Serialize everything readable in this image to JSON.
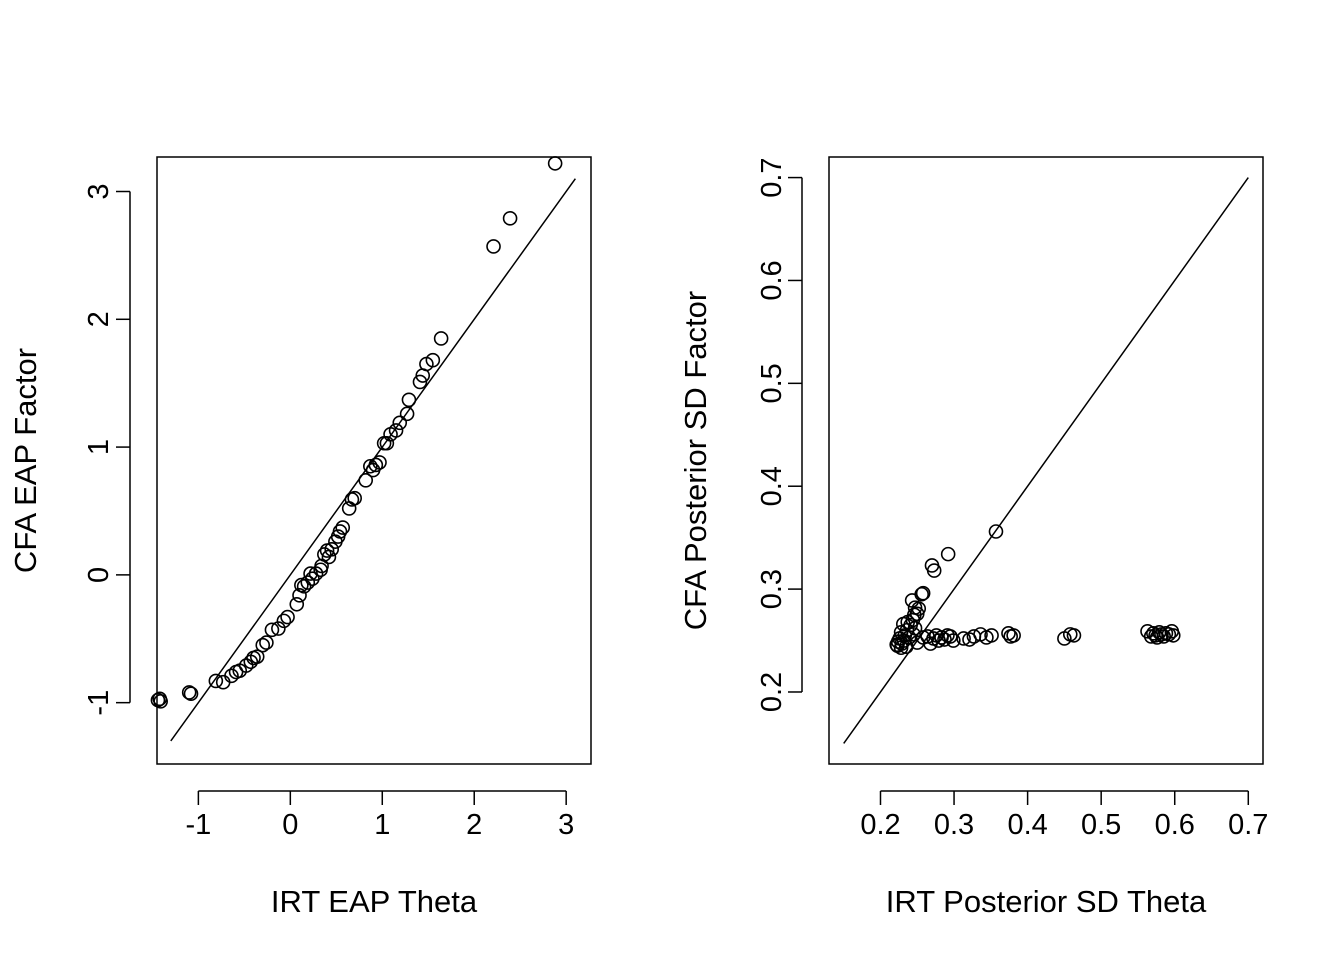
{
  "chart_data": [
    {
      "type": "scatter",
      "xlabel": "IRT EAP Theta",
      "ylabel": "CFA EAP Factor",
      "xlim": [
        -1.45,
        3.27
      ],
      "ylim": [
        -1.48,
        3.27
      ],
      "xticks": [
        "-1",
        "0",
        "1",
        "2",
        "3"
      ],
      "yticks": [
        "-1",
        "0",
        "1",
        "2",
        "3"
      ],
      "grid": false,
      "reference_line": {
        "slope": 1,
        "intercept": 0,
        "x_from": -1.3,
        "x_to": 3.1
      },
      "points": [
        [
          2.88,
          3.22
        ],
        [
          2.39,
          2.79
        ],
        [
          2.21,
          2.57
        ],
        [
          1.64,
          1.85
        ],
        [
          1.55,
          1.68
        ],
        [
          1.48,
          1.65
        ],
        [
          1.44,
          1.56
        ],
        [
          1.41,
          1.51
        ],
        [
          1.29,
          1.37
        ],
        [
          1.27,
          1.26
        ],
        [
          1.19,
          1.19
        ],
        [
          1.15,
          1.13
        ],
        [
          1.09,
          1.1
        ],
        [
          1.05,
          1.03
        ],
        [
          1.02,
          1.03
        ],
        [
          0.97,
          0.88
        ],
        [
          0.93,
          0.86
        ],
        [
          0.9,
          0.82
        ],
        [
          0.87,
          0.85
        ],
        [
          0.82,
          0.74
        ],
        [
          0.7,
          0.6
        ],
        [
          0.67,
          0.59
        ],
        [
          0.64,
          0.52
        ],
        [
          0.57,
          0.37
        ],
        [
          0.54,
          0.34
        ],
        [
          0.52,
          0.3
        ],
        [
          0.49,
          0.26
        ],
        [
          0.45,
          0.2
        ],
        [
          0.42,
          0.14
        ],
        [
          0.4,
          0.19
        ],
        [
          0.37,
          0.16
        ],
        [
          0.34,
          0.07
        ],
        [
          0.33,
          0.04
        ],
        [
          0.28,
          0.01
        ],
        [
          0.24,
          -0.03
        ],
        [
          0.22,
          0.01
        ],
        [
          0.19,
          -0.06
        ],
        [
          0.15,
          -0.09
        ],
        [
          0.12,
          -0.08
        ],
        [
          0.1,
          -0.16
        ],
        [
          0.07,
          -0.23
        ],
        [
          -0.03,
          -0.33
        ],
        [
          -0.07,
          -0.36
        ],
        [
          -0.13,
          -0.42
        ],
        [
          -0.2,
          -0.43
        ],
        [
          -0.26,
          -0.53
        ],
        [
          -0.3,
          -0.55
        ],
        [
          -0.36,
          -0.64
        ],
        [
          -0.4,
          -0.65
        ],
        [
          -0.43,
          -0.68
        ],
        [
          -0.48,
          -0.71
        ],
        [
          -0.55,
          -0.75
        ],
        [
          -0.59,
          -0.76
        ],
        [
          -0.64,
          -0.79
        ],
        [
          -0.73,
          -0.84
        ],
        [
          -0.81,
          -0.83
        ],
        [
          -1.08,
          -0.93
        ],
        [
          -1.1,
          -0.92
        ],
        [
          -1.42,
          -0.97
        ],
        [
          -1.44,
          -0.98
        ],
        [
          -1.41,
          -0.99
        ]
      ]
    },
    {
      "type": "scatter",
      "xlabel": "IRT Posterior SD Theta",
      "ylabel": "CFA Posterior SD Factor",
      "xlim": [
        0.13,
        0.72
      ],
      "ylim": [
        0.13,
        0.72
      ],
      "xticks": [
        "0.2",
        "0.3",
        "0.4",
        "0.5",
        "0.6",
        "0.7"
      ],
      "yticks": [
        "0.2",
        "0.3",
        "0.4",
        "0.5",
        "0.6",
        "0.7"
      ],
      "grid": false,
      "reference_line": {
        "slope": 1,
        "intercept": 0,
        "x_from": 0.15,
        "x_to": 0.7
      },
      "points": [
        [
          0.357,
          0.356
        ],
        [
          0.292,
          0.334
        ],
        [
          0.27,
          0.323
        ],
        [
          0.273,
          0.318
        ],
        [
          0.258,
          0.296
        ],
        [
          0.256,
          0.295
        ],
        [
          0.243,
          0.289
        ],
        [
          0.247,
          0.282
        ],
        [
          0.252,
          0.281
        ],
        [
          0.25,
          0.276
        ],
        [
          0.246,
          0.275
        ],
        [
          0.244,
          0.27
        ],
        [
          0.237,
          0.268
        ],
        [
          0.231,
          0.266
        ],
        [
          0.241,
          0.265
        ],
        [
          0.247,
          0.262
        ],
        [
          0.236,
          0.26
        ],
        [
          0.228,
          0.258
        ],
        [
          0.245,
          0.256
        ],
        [
          0.233,
          0.255
        ],
        [
          0.239,
          0.253
        ],
        [
          0.226,
          0.252
        ],
        [
          0.232,
          0.25
        ],
        [
          0.224,
          0.249
        ],
        [
          0.229,
          0.247
        ],
        [
          0.222,
          0.246
        ],
        [
          0.235,
          0.244
        ],
        [
          0.228,
          0.243
        ],
        [
          0.223,
          0.245
        ],
        [
          0.25,
          0.248
        ],
        [
          0.258,
          0.253
        ],
        [
          0.264,
          0.254
        ],
        [
          0.268,
          0.247
        ],
        [
          0.272,
          0.252
        ],
        [
          0.276,
          0.255
        ],
        [
          0.279,
          0.25
        ],
        [
          0.283,
          0.253
        ],
        [
          0.287,
          0.251
        ],
        [
          0.291,
          0.255
        ],
        [
          0.295,
          0.254
        ],
        [
          0.299,
          0.25
        ],
        [
          0.313,
          0.252
        ],
        [
          0.321,
          0.251
        ],
        [
          0.327,
          0.254
        ],
        [
          0.336,
          0.256
        ],
        [
          0.344,
          0.253
        ],
        [
          0.351,
          0.255
        ],
        [
          0.374,
          0.257
        ],
        [
          0.377,
          0.254
        ],
        [
          0.381,
          0.255
        ],
        [
          0.45,
          0.252
        ],
        [
          0.458,
          0.256
        ],
        [
          0.463,
          0.255
        ],
        [
          0.563,
          0.259
        ],
        [
          0.568,
          0.254
        ],
        [
          0.571,
          0.257
        ],
        [
          0.574,
          0.255
        ],
        [
          0.576,
          0.253
        ],
        [
          0.579,
          0.258
        ],
        [
          0.582,
          0.256
        ],
        [
          0.585,
          0.254
        ],
        [
          0.588,
          0.257
        ],
        [
          0.592,
          0.256
        ],
        [
          0.596,
          0.259
        ],
        [
          0.598,
          0.255
        ]
      ]
    }
  ]
}
